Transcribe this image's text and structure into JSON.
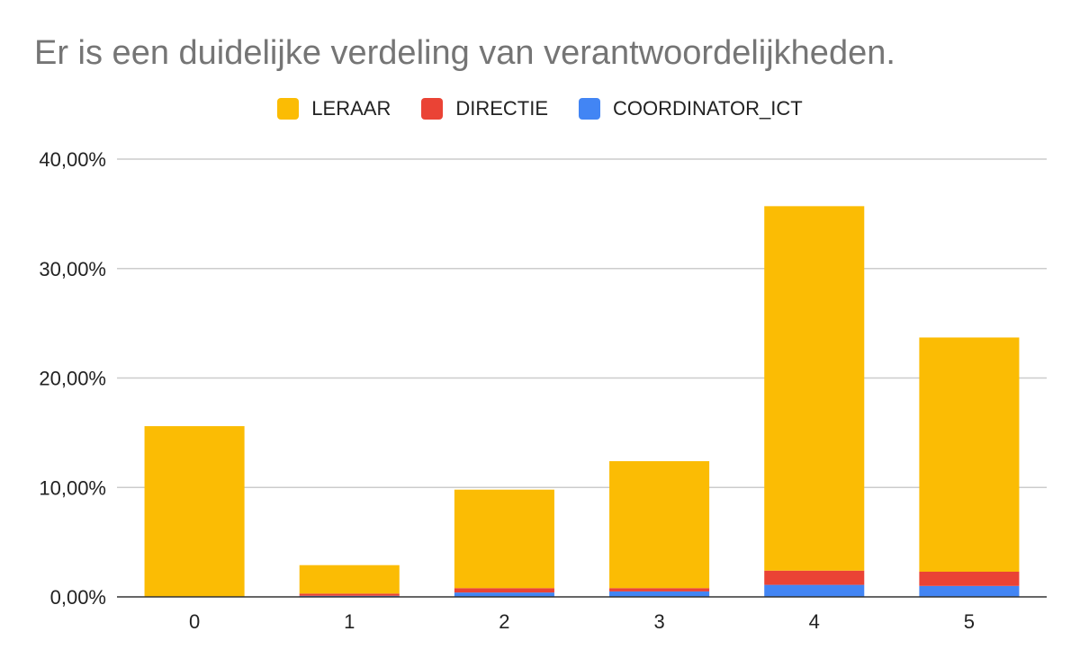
{
  "chart_data": {
    "type": "bar",
    "stacked": true,
    "title": "Er is een duidelijke verdeling van verantwoordelijkheden.",
    "categories": [
      "0",
      "1",
      "2",
      "3",
      "4",
      "5"
    ],
    "series": [
      {
        "name": "COORDINATOR_ICT",
        "color": "#4285F4",
        "values": [
          0.0,
          0.1,
          0.4,
          0.5,
          1.1,
          1.0
        ]
      },
      {
        "name": "DIRECTIE",
        "color": "#EA4335",
        "values": [
          0.0,
          0.2,
          0.4,
          0.3,
          1.3,
          1.3
        ]
      },
      {
        "name": "LERAAR",
        "color": "#FBBC04",
        "values": [
          15.6,
          2.6,
          9.0,
          11.6,
          33.3,
          21.4
        ]
      }
    ],
    "legend_order": [
      "LERAAR",
      "DIRECTIE",
      "COORDINATOR_ICT"
    ],
    "xlabel": "",
    "ylabel": "",
    "ylim": [
      0,
      40
    ],
    "yticks": [
      "0,00%",
      "10,00%",
      "20,00%",
      "30,00%",
      "40,00%"
    ],
    "grid": true,
    "legend_position": "top"
  }
}
